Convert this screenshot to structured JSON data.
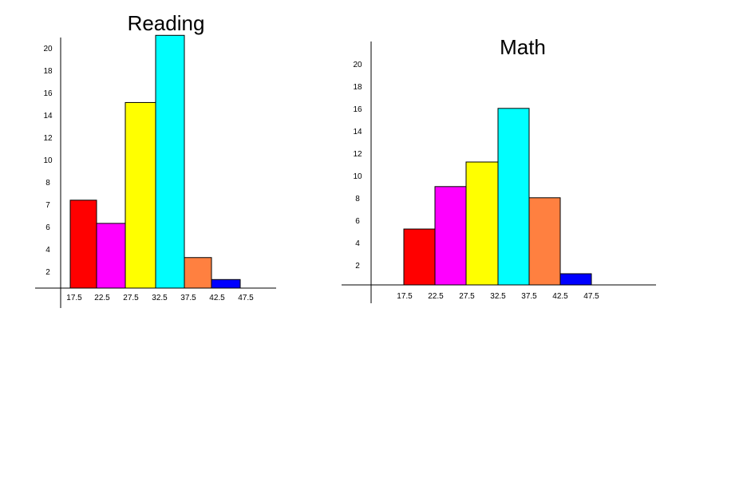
{
  "chart_data": [
    {
      "type": "bar",
      "title": "Reading",
      "y_ticks": [
        "2",
        "4",
        "6",
        "7",
        "8",
        "10",
        "12",
        "14",
        "16",
        "18",
        "20"
      ],
      "x_ticks": [
        "17.5",
        "22.5",
        "27.5",
        "32.5",
        "37.5",
        "42.5",
        "47.5"
      ],
      "bins": [
        {
          "from": 17.5,
          "to": 22.5,
          "value": 7.2,
          "color": "#ff0000"
        },
        {
          "from": 22.5,
          "to": 27.5,
          "value": 5.3,
          "color": "#ff00ff"
        },
        {
          "from": 27.5,
          "to": 32.5,
          "value": 15.2,
          "color": "#ffff00"
        },
        {
          "from": 32.5,
          "to": 37.5,
          "value": 20.7,
          "color": "#00ffff"
        },
        {
          "from": 37.5,
          "to": 42.5,
          "value": 2.5,
          "color": "#ff8040"
        },
        {
          "from": 42.5,
          "to": 47.5,
          "value": 0.7,
          "color": "#0000ff"
        }
      ]
    },
    {
      "type": "bar",
      "title": "Math",
      "y_ticks": [
        "2",
        "4",
        "6",
        "8",
        "10",
        "12",
        "14",
        "16",
        "18",
        "20"
      ],
      "x_ticks": [
        "17.5",
        "22.5",
        "27.5",
        "32.5",
        "37.5",
        "42.5",
        "47.5"
      ],
      "bins": [
        {
          "from": 17.5,
          "to": 22.5,
          "value": 5.0,
          "color": "#ff0000"
        },
        {
          "from": 22.5,
          "to": 27.5,
          "value": 8.8,
          "color": "#ff00ff"
        },
        {
          "from": 27.5,
          "to": 32.5,
          "value": 11.0,
          "color": "#ffff00"
        },
        {
          "from": 32.5,
          "to": 37.5,
          "value": 15.8,
          "color": "#00ffff"
        },
        {
          "from": 37.5,
          "to": 42.5,
          "value": 7.8,
          "color": "#ff8040"
        },
        {
          "from": 42.5,
          "to": 47.5,
          "value": 1.0,
          "color": "#0000ff"
        }
      ]
    }
  ]
}
